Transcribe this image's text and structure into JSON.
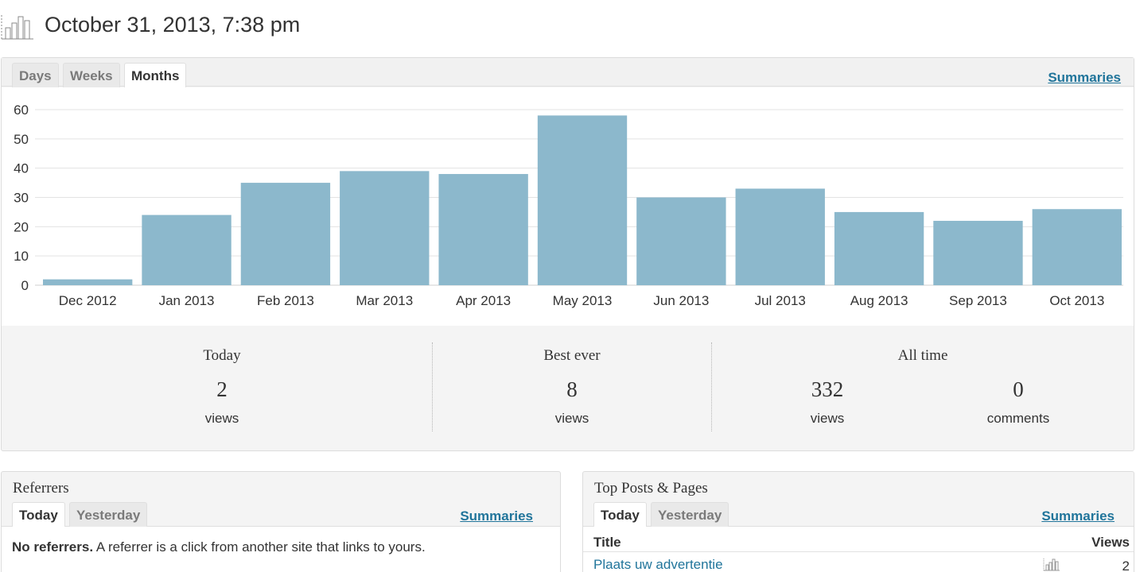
{
  "header": {
    "title": "October 31, 2013, 7:38 pm",
    "icon": "bar-chart-icon"
  },
  "main": {
    "tabs": [
      {
        "label": "Days",
        "active": false
      },
      {
        "label": "Weeks",
        "active": false
      },
      {
        "label": "Months",
        "active": true
      }
    ],
    "summaries_label": "Summaries"
  },
  "chart_data": {
    "type": "bar",
    "categories": [
      "Dec 2012",
      "Jan 2013",
      "Feb 2013",
      "Mar 2013",
      "Apr 2013",
      "May 2013",
      "Jun 2013",
      "Jul 2013",
      "Aug 2013",
      "Sep 2013",
      "Oct 2013"
    ],
    "values": [
      2,
      24,
      35,
      39,
      38,
      58,
      30,
      33,
      25,
      22,
      26
    ],
    "yticks": [
      "0",
      "10",
      "20",
      "30",
      "40",
      "50",
      "60"
    ],
    "ylim": [
      0,
      60
    ],
    "title": "",
    "xlabel": "",
    "ylabel": "",
    "grid": true,
    "bar_color": "#8cb8cc"
  },
  "stats": {
    "today": {
      "label": "Today",
      "value": "2",
      "unit": "views"
    },
    "best_ever": {
      "label": "Best ever",
      "value": "8",
      "unit": "views"
    },
    "all_time": {
      "label": "All time",
      "views_value": "332",
      "views_unit": "views",
      "comments_value": "0",
      "comments_unit": "comments"
    }
  },
  "referrers": {
    "title": "Referrers",
    "tabs": [
      {
        "label": "Today",
        "active": true
      },
      {
        "label": "Yesterday",
        "active": false
      }
    ],
    "summaries_label": "Summaries",
    "empty_strong": "No referrers.",
    "empty_text": " A referrer is a click from another site that links to yours."
  },
  "top_posts": {
    "title": "Top Posts & Pages",
    "tabs": [
      {
        "label": "Today",
        "active": true
      },
      {
        "label": "Yesterday",
        "active": false
      }
    ],
    "summaries_label": "Summaries",
    "columns": {
      "title": "Title",
      "views": "Views"
    },
    "rows": [
      {
        "title": "Plaats uw advertentie",
        "views": "2"
      }
    ]
  },
  "colors": {
    "link": "#21759b",
    "bar": "#8cb8cc",
    "panel_bg": "#f4f4f4"
  }
}
